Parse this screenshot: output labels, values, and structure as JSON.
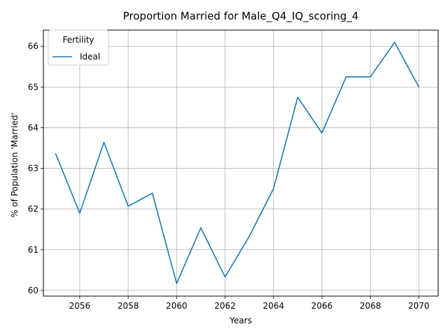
{
  "chart_data": {
    "type": "line",
    "title": "Proportion Married for Male_Q4_IQ_scoring_4",
    "xlabel": "Years",
    "ylabel": "% of Population 'Married'",
    "xlim": [
      2054.5,
      2070.8
    ],
    "ylim": [
      59.86,
      66.4
    ],
    "x_ticks": [
      2056,
      2058,
      2060,
      2062,
      2064,
      2066,
      2068,
      2070
    ],
    "y_ticks": [
      60,
      61,
      62,
      63,
      64,
      65,
      66
    ],
    "grid": true,
    "legend": {
      "title": "Fertility",
      "placement": "top-left"
    },
    "series": [
      {
        "name": "Ideal",
        "color": "#1f77b4",
        "x": [
          2055,
          2056,
          2057,
          2058,
          2059,
          2060,
          2061,
          2062,
          2063,
          2064,
          2065,
          2066,
          2067,
          2068,
          2069,
          2070
        ],
        "y": [
          63.37,
          61.9,
          63.64,
          62.07,
          62.39,
          60.17,
          61.54,
          60.33,
          61.33,
          62.5,
          64.75,
          63.87,
          65.25,
          65.25,
          66.1,
          65.0
        ]
      }
    ]
  }
}
